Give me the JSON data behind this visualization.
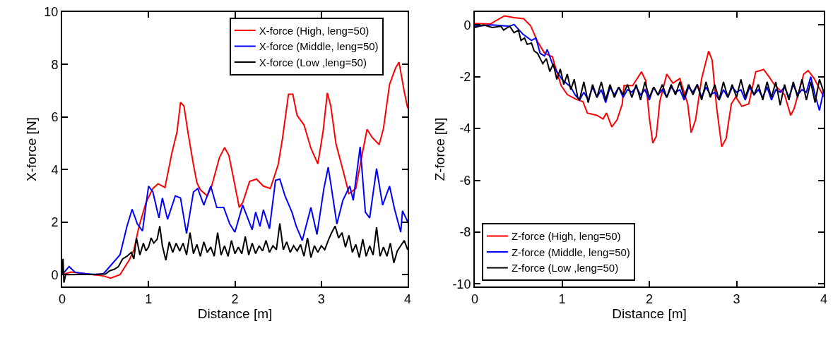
{
  "chart_data": [
    {
      "type": "line",
      "xlabel": "Distance [m]",
      "ylabel": "X-force [N]",
      "xlim": [
        0,
        4
      ],
      "ylim": [
        -0.45,
        10
      ],
      "xticks": [
        0,
        1,
        2,
        3,
        4
      ],
      "yticks": [
        0,
        2,
        4,
        6,
        8,
        10
      ],
      "legend": "top right",
      "series": [
        {
          "name": "X-force (High, leng=50)",
          "color": "#ff0000",
          "x": [
            0,
            0.1,
            0.48,
            0.56,
            0.67,
            0.78,
            0.83,
            0.89,
            0.97,
            1.05,
            1.11,
            1.19,
            1.27,
            1.33,
            1.37,
            1.41,
            1.46,
            1.52,
            1.56,
            1.6,
            1.68,
            1.73,
            1.82,
            1.88,
            1.93,
            1.98,
            2.05,
            2.09,
            2.17,
            2.25,
            2.33,
            2.41,
            2.5,
            2.55,
            2.62,
            2.67,
            2.72,
            2.8,
            2.88,
            2.96,
            3.02,
            3.07,
            3.11,
            3.17,
            3.25,
            3.32,
            3.4,
            3.47,
            3.53,
            3.59,
            3.67,
            3.72,
            3.79,
            3.86,
            3.9,
            3.96,
            4.0
          ],
          "values": [
            0,
            0.1,
            -0.05,
            -0.13,
            0,
            0.58,
            0.94,
            1.84,
            2.74,
            3.28,
            3.46,
            3.32,
            4.63,
            5.44,
            6.56,
            6.42,
            5.34,
            4.18,
            3.5,
            3.23,
            3.0,
            3.36,
            4.45,
            4.84,
            4.54,
            3.73,
            2.56,
            2.74,
            3.55,
            3.64,
            3.37,
            3.28,
            4.18,
            5.17,
            6.87,
            6.87,
            6.06,
            5.7,
            4.81,
            4.22,
            5.44,
            6.92,
            6.42,
            4.98,
            3.99,
            3.09,
            3.28,
            4.54,
            5.53,
            5.22,
            4.95,
            5.57,
            7.24,
            7.87,
            8.09,
            6.97,
            6.34
          ]
        },
        {
          "name": "X-force (Middle, leng=50)",
          "color": "#0000ff",
          "x": [
            0,
            0.08,
            0.15,
            0.37,
            0.48,
            0.67,
            0.75,
            0.81,
            0.87,
            0.93,
            1.0,
            1.05,
            1.12,
            1.16,
            1.22,
            1.31,
            1.37,
            1.44,
            1.52,
            1.57,
            1.64,
            1.72,
            1.79,
            1.87,
            1.94,
            2.0,
            2.09,
            2.2,
            2.24,
            2.29,
            2.33,
            2.4,
            2.47,
            2.52,
            2.58,
            2.66,
            2.71,
            2.78,
            2.88,
            2.95,
            3.03,
            3.08,
            3.11,
            3.18,
            3.25,
            3.33,
            3.37,
            3.45,
            3.51,
            3.56,
            3.64,
            3.71,
            3.79,
            3.85,
            3.92,
            3.94,
            4.0
          ],
          "values": [
            0,
            0.31,
            0.09,
            0,
            0.04,
            0.76,
            1.84,
            2.49,
            1.93,
            1.66,
            3.37,
            3.15,
            2.16,
            2.92,
            2.11,
            3.0,
            2.92,
            1.57,
            3.15,
            3.28,
            2.65,
            3.37,
            2.56,
            2.56,
            1.93,
            1.62,
            2.65,
            1.71,
            2.38,
            1.84,
            2.47,
            1.75,
            3.59,
            3.64,
            3.0,
            2.38,
            1.84,
            1.3,
            2.56,
            1.53,
            3.28,
            4.09,
            3.46,
            1.93,
            2.83,
            3.37,
            2.83,
            4.87,
            2.38,
            2.16,
            4.04,
            2.65,
            3.37,
            2.47,
            1.62,
            2.43,
            2.02
          ]
        },
        {
          "name": "X-force (Low ,leng=50)",
          "color": "#000000",
          "x": [
            0,
            0.01,
            0.02,
            0.04,
            0.5,
            0.55,
            0.6,
            0.65,
            0.7,
            0.75,
            0.8,
            0.83,
            0.86,
            0.9,
            0.94,
            0.97,
            1.0,
            1.03,
            1.06,
            1.1,
            1.13,
            1.16,
            1.2,
            1.24,
            1.28,
            1.32,
            1.36,
            1.4,
            1.44,
            1.48,
            1.52,
            1.56,
            1.6,
            1.64,
            1.68,
            1.72,
            1.76,
            1.8,
            1.84,
            1.88,
            1.92,
            1.96,
            2.0,
            2.04,
            2.08,
            2.12,
            2.16,
            2.2,
            2.24,
            2.28,
            2.32,
            2.36,
            2.4,
            2.44,
            2.48,
            2.52,
            2.56,
            2.6,
            2.64,
            2.68,
            2.72,
            2.76,
            2.8,
            2.84,
            2.88,
            2.92,
            2.96,
            3.0,
            3.04,
            3.08,
            3.12,
            3.16,
            3.2,
            3.24,
            3.28,
            3.32,
            3.36,
            3.4,
            3.44,
            3.48,
            3.52,
            3.56,
            3.6,
            3.64,
            3.68,
            3.72,
            3.76,
            3.8,
            3.84,
            3.88,
            3.92,
            3.96,
            4.0
          ],
          "values": [
            0,
            0.6,
            -0.3,
            0,
            0.02,
            0.15,
            0.2,
            0.3,
            0.6,
            0.7,
            0.85,
            0.6,
            1.4,
            0.75,
            1.2,
            0.9,
            1.05,
            1.4,
            1.2,
            1.35,
            1.85,
            1.1,
            0.55,
            1.25,
            0.85,
            1.2,
            0.9,
            1.2,
            0.75,
            1.6,
            0.8,
            1.15,
            0.7,
            1.25,
            0.85,
            1.05,
            0.7,
            1.6,
            0.75,
            1.1,
            0.7,
            1.3,
            0.8,
            1.05,
            0.8,
            1.45,
            0.75,
            1.2,
            0.8,
            1.1,
            0.9,
            1.3,
            0.85,
            1.1,
            0.95,
            1.95,
            0.95,
            1.25,
            0.85,
            1.1,
            0.9,
            1.15,
            0.7,
            1.4,
            0.65,
            1.1,
            0.85,
            1.1,
            0.95,
            1.3,
            1.6,
            1.85,
            1.4,
            1.6,
            1.05,
            1.5,
            0.85,
            1.15,
            0.65,
            1.35,
            0.7,
            1.1,
            0.75,
            1.8,
            0.7,
            1.05,
            0.7,
            1.2,
            0.45,
            0.9,
            1.1,
            1.3,
            0.95
          ]
        }
      ]
    },
    {
      "type": "line",
      "xlabel": "Distance [m]",
      "ylabel": "Z-force [N]",
      "xlim": [
        0,
        4
      ],
      "ylim": [
        -10.1,
        0.5
      ],
      "xticks": [
        0,
        1,
        2,
        3,
        4
      ],
      "yticks": [
        -10,
        -8,
        -6,
        -4,
        -2,
        0
      ],
      "legend": "bottom left",
      "series": [
        {
          "name": "Z-force (High, leng=50)",
          "color": "#ff0000",
          "x": [
            0,
            0.18,
            0.26,
            0.34,
            0.45,
            0.56,
            0.64,
            0.72,
            0.8,
            0.89,
            0.94,
            0.99,
            1.06,
            1.16,
            1.24,
            1.29,
            1.4,
            1.47,
            1.51,
            1.57,
            1.63,
            1.69,
            1.71,
            1.81,
            1.91,
            1.96,
            2.0,
            2.04,
            2.08,
            2.12,
            2.2,
            2.27,
            2.35,
            2.44,
            2.48,
            2.53,
            2.6,
            2.68,
            2.72,
            2.77,
            2.83,
            2.88,
            2.94,
            2.99,
            3.06,
            3.14,
            3.22,
            3.31,
            3.37,
            3.44,
            3.55,
            3.62,
            3.66,
            3.77,
            3.82,
            3.89,
            4.0
          ],
          "values": [
            0.06,
            0.04,
            0.2,
            0.35,
            0.28,
            0.24,
            -0.03,
            -0.65,
            -1.09,
            -1.23,
            -1.81,
            -2.34,
            -2.69,
            -2.87,
            -2.96,
            -3.4,
            -3.49,
            -3.63,
            -3.4,
            -3.94,
            -3.67,
            -3.05,
            -2.34,
            -2.34,
            -1.81,
            -2.16,
            -3.58,
            -4.56,
            -4.3,
            -2.96,
            -1.9,
            -2.25,
            -2.07,
            -3.05,
            -4.16,
            -3.67,
            -2.07,
            -1.01,
            -1.36,
            -3.14,
            -4.7,
            -4.39,
            -3.05,
            -2.78,
            -3.14,
            -3.05,
            -1.81,
            -1.72,
            -1.99,
            -2.34,
            -2.69,
            -3.49,
            -3.23,
            -1.9,
            -1.76,
            -2.07,
            -2.78
          ]
        },
        {
          "name": "Z-force (Middle, leng=50)",
          "color": "#0000ff",
          "x": [
            0,
            0.2,
            0.4,
            0.45,
            0.55,
            0.65,
            0.7,
            0.75,
            0.8,
            0.83,
            0.9,
            1.0,
            1.1,
            1.15,
            1.2,
            1.25,
            1.3,
            1.35,
            1.4,
            1.45,
            1.5,
            1.55,
            1.6,
            1.65,
            1.7,
            1.75,
            1.8,
            1.85,
            1.9,
            1.95,
            2.0,
            2.05,
            2.1,
            2.15,
            2.2,
            2.25,
            2.3,
            2.35,
            2.4,
            2.45,
            2.5,
            2.55,
            2.6,
            2.65,
            2.7,
            2.75,
            2.8,
            2.85,
            2.9,
            2.95,
            3.0,
            3.05,
            3.1,
            3.15,
            3.2,
            3.25,
            3.3,
            3.35,
            3.4,
            3.45,
            3.5,
            3.55,
            3.6,
            3.65,
            3.7,
            3.75,
            3.8,
            3.85,
            3.9,
            3.95,
            4.0
          ],
          "values": [
            -0.05,
            0.0,
            -0.05,
            0.02,
            -0.35,
            -0.6,
            -0.5,
            -1.1,
            -1.2,
            -0.95,
            -1.6,
            -2.1,
            -2.4,
            -2.7,
            -2.9,
            -2.6,
            -2.9,
            -2.4,
            -2.8,
            -2.5,
            -3.0,
            -2.4,
            -2.7,
            -2.4,
            -2.8,
            -2.5,
            -2.6,
            -2.4,
            -2.7,
            -2.5,
            -2.9,
            -2.4,
            -2.7,
            -2.5,
            -2.8,
            -2.4,
            -2.6,
            -2.5,
            -2.9,
            -2.4,
            -2.6,
            -2.3,
            -2.8,
            -2.4,
            -2.7,
            -2.6,
            -2.9,
            -2.5,
            -2.8,
            -2.4,
            -2.6,
            -2.5,
            -2.9,
            -2.4,
            -2.7,
            -2.5,
            -2.8,
            -2.4,
            -2.9,
            -2.5,
            -2.6,
            -2.4,
            -2.8,
            -2.3,
            -2.7,
            -2.5,
            -2.6,
            -2.0,
            -2.7,
            -3.3,
            -2.5
          ]
        },
        {
          "name": "Z-force (Low ,leng=50)",
          "color": "#000000",
          "x": [
            0,
            0.1,
            0.2,
            0.3,
            0.33,
            0.4,
            0.45,
            0.5,
            0.53,
            0.57,
            0.6,
            0.65,
            0.68,
            0.72,
            0.78,
            0.82,
            0.86,
            0.9,
            0.94,
            0.98,
            1.02,
            1.06,
            1.1,
            1.14,
            1.18,
            1.2,
            1.25,
            1.3,
            1.35,
            1.4,
            1.45,
            1.5,
            1.55,
            1.6,
            1.65,
            1.7,
            1.75,
            1.8,
            1.85,
            1.9,
            1.95,
            2.0,
            2.05,
            2.1,
            2.15,
            2.2,
            2.25,
            2.3,
            2.35,
            2.4,
            2.45,
            2.5,
            2.55,
            2.6,
            2.65,
            2.7,
            2.75,
            2.8,
            2.85,
            2.9,
            2.95,
            3.0,
            3.05,
            3.1,
            3.15,
            3.2,
            3.25,
            3.3,
            3.35,
            3.4,
            3.45,
            3.5,
            3.55,
            3.6,
            3.65,
            3.7,
            3.75,
            3.8,
            3.85,
            3.9,
            3.95,
            4.0
          ],
          "values": [
            -0.1,
            0.0,
            -0.1,
            -0.05,
            -0.2,
            -0.05,
            -0.3,
            -0.2,
            -0.6,
            -0.5,
            -0.75,
            -0.7,
            -1.0,
            -1.1,
            -1.5,
            -1.3,
            -1.8,
            -1.5,
            -2.1,
            -1.7,
            -2.3,
            -1.9,
            -2.5,
            -2.1,
            -2.8,
            -2.9,
            -2.2,
            -3.0,
            -2.3,
            -2.8,
            -2.2,
            -2.9,
            -2.3,
            -2.8,
            -2.4,
            -2.7,
            -2.3,
            -2.8,
            -2.3,
            -2.9,
            -2.2,
            -2.8,
            -2.4,
            -2.7,
            -2.3,
            -2.8,
            -2.3,
            -2.7,
            -2.2,
            -2.8,
            -2.3,
            -2.7,
            -2.3,
            -2.9,
            -2.2,
            -2.8,
            -2.3,
            -2.9,
            -2.2,
            -2.8,
            -2.3,
            -2.8,
            -2.1,
            -2.8,
            -2.3,
            -2.7,
            -2.3,
            -2.9,
            -2.2,
            -2.8,
            -2.2,
            -3.1,
            -2.3,
            -2.9,
            -2.2,
            -2.8,
            -2.1,
            -2.9,
            -2.2,
            -3.0,
            -2.1,
            -2.6
          ]
        }
      ]
    }
  ]
}
